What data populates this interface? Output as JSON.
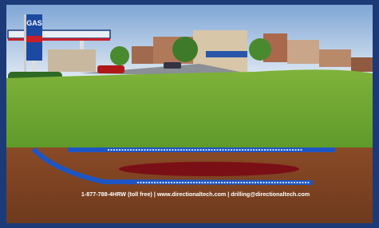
{
  "sign": {
    "text": "GAS"
  },
  "footer": {
    "contact": "1-877-788-4HRW (toll free) | www.directionaltech.com | drilling@directionaltech.com"
  }
}
